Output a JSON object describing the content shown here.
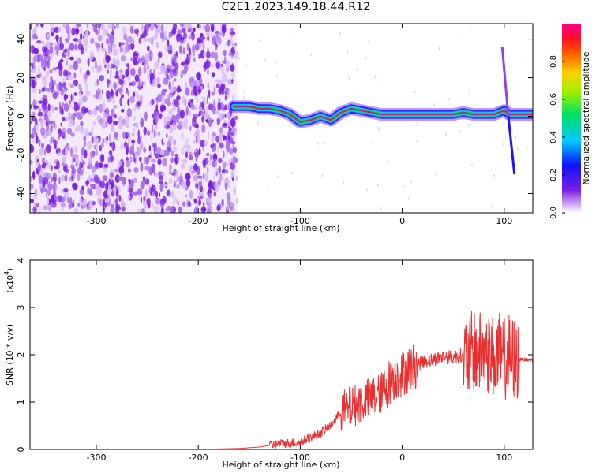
{
  "title": "C2E1.2023.149.18.44.R12",
  "colors": {
    "snr_line": "#e83030",
    "spectral_ridge": "#cc2060",
    "noise_dark": "#7a1fe0",
    "noise_light": "#d6b8f5"
  },
  "chart_data": [
    {
      "type": "heatmap",
      "title": "C2E1.2023.149.18.44.R12",
      "xlabel": "Height of straight line (km)",
      "ylabel": "Frequency (Hz)",
      "xlim": [
        -365,
        128
      ],
      "ylim": [
        -50,
        48
      ],
      "xticks": [
        -300,
        -200,
        -100,
        0,
        100
      ],
      "yticks": [
        -40,
        -20,
        0,
        20,
        40
      ],
      "xtick_labels": [
        "-300",
        "-200",
        "-100",
        "0",
        "100"
      ],
      "ytick_labels": [
        "-40",
        "-20",
        "0",
        "20",
        "40"
      ],
      "noise_region_x": [
        -365,
        -162
      ],
      "ridge": {
        "x": [
          -165,
          -150,
          -140,
          -130,
          -120,
          -110,
          -100,
          -90,
          -80,
          -70,
          -60,
          -50,
          -40,
          -30,
          -20,
          -10,
          0,
          10,
          20,
          30,
          40,
          50,
          60,
          70,
          80,
          90,
          100,
          105,
          110,
          120,
          128
        ],
        "freq": [
          5,
          5,
          4,
          4,
          3,
          1,
          -3,
          -2,
          0,
          -2,
          2,
          4,
          3,
          2,
          1,
          1,
          1,
          1,
          1,
          1,
          1,
          1,
          2,
          1,
          1,
          1,
          3,
          1,
          1,
          1,
          1
        ]
      },
      "colorbar": {
        "label": "Normalized spectral amplitude",
        "range": [
          0,
          1
        ],
        "ticks": [
          0.0,
          0.2,
          0.4,
          0.6,
          0.8
        ],
        "tick_labels": [
          "0.0",
          "0.2",
          "0.4",
          "0.6",
          "0.8"
        ]
      }
    },
    {
      "type": "line",
      "xlabel": "Height of straight line (km)",
      "ylabel": "SNR (10 * v/v)",
      "y_multiplier": "(x10",
      "y_multiplier_exp": "4",
      "y_multiplier_close": ")",
      "xlim": [
        -365,
        128
      ],
      "ylim": [
        0,
        4
      ],
      "xticks": [
        -300,
        -200,
        -100,
        0,
        100
      ],
      "yticks": [
        0,
        1,
        2,
        3,
        4
      ],
      "xtick_labels": [
        "-300",
        "-200",
        "-100",
        "0",
        "100"
      ],
      "ytick_labels": [
        "0",
        "1",
        "2",
        "3",
        "4"
      ],
      "series": [
        {
          "x": [
            -365,
            -300,
            -250,
            -200,
            -160,
            -140,
            -120,
            -100,
            -90,
            -80,
            -70,
            -60,
            -50,
            -40,
            -30,
            -20,
            -10,
            0,
            10,
            20,
            30,
            40,
            50,
            60,
            65,
            70,
            75,
            80,
            85,
            90,
            95,
            100,
            105,
            110,
            115,
            120,
            128
          ],
          "y": [
            0.0,
            0.0,
            0.0,
            0.0,
            0.02,
            0.05,
            0.12,
            0.15,
            0.25,
            0.35,
            0.5,
            0.8,
            0.9,
            1.0,
            1.1,
            1.2,
            1.5,
            1.6,
            1.75,
            1.85,
            1.9,
            1.95,
            1.95,
            2.0,
            1.95,
            2.1,
            2.0,
            2.1,
            2.0,
            1.95,
            2.0,
            1.9,
            2.0,
            1.9,
            1.9,
            1.9,
            1.88
          ]
        }
      ]
    }
  ]
}
